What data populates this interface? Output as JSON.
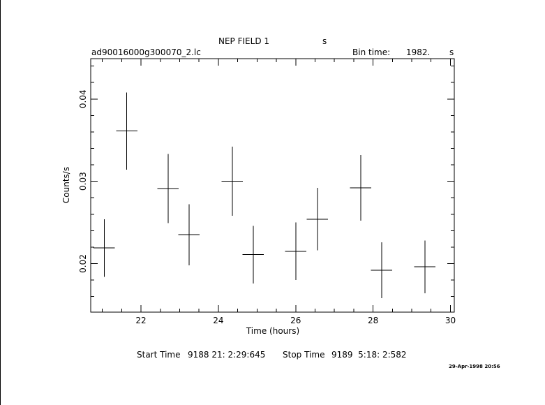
{
  "header": {
    "title": "NEP FIELD 1",
    "title_unit": "s",
    "filename": "ad90016000g300070_2.lc",
    "bin_time_label": "Bin time:",
    "bin_time_value": "1982.",
    "bin_time_unit": "s"
  },
  "footer": {
    "start_label": "Start Time",
    "start_value": "9188 21: 2:29:645",
    "stop_label": "Stop Time",
    "stop_value": "9189  5:18: 2:582",
    "date_stamp": "29-Apr-1998 20:56"
  },
  "chart_data": {
    "type": "scatter",
    "title": "NEP FIELD 1",
    "xlabel": "Time (hours)",
    "ylabel": "Counts/s",
    "xlim": [
      20.7,
      30.1
    ],
    "ylim": [
      0.0141,
      0.0449
    ],
    "x_ticks": [
      22,
      24,
      26,
      28,
      30
    ],
    "x_tick_labels": [
      "22",
      "24",
      "26",
      "28",
      "30"
    ],
    "y_ticks": [
      0.02,
      0.03,
      0.04
    ],
    "y_tick_labels": [
      "0.02",
      "0.03",
      "0.04"
    ],
    "grid": false,
    "series": [
      {
        "points": [
          {
            "x": 21.05,
            "xerr": 0.275,
            "y": 0.0219,
            "yerr": 0.0035
          },
          {
            "x": 21.63,
            "xerr": 0.275,
            "y": 0.0361,
            "yerr": 0.0047
          },
          {
            "x": 22.7,
            "xerr": 0.275,
            "y": 0.0291,
            "yerr": 0.0042
          },
          {
            "x": 23.24,
            "xerr": 0.275,
            "y": 0.0235,
            "yerr": 0.0037
          },
          {
            "x": 24.36,
            "xerr": 0.275,
            "y": 0.03,
            "yerr": 0.0042
          },
          {
            "x": 24.9,
            "xerr": 0.275,
            "y": 0.0211,
            "yerr": 0.0035
          },
          {
            "x": 26.0,
            "xerr": 0.275,
            "y": 0.0215,
            "yerr": 0.0035
          },
          {
            "x": 26.56,
            "xerr": 0.275,
            "y": 0.0254,
            "yerr": 0.0038
          },
          {
            "x": 27.68,
            "xerr": 0.275,
            "y": 0.0292,
            "yerr": 0.004
          },
          {
            "x": 28.22,
            "xerr": 0.275,
            "y": 0.0192,
            "yerr": 0.0034
          },
          {
            "x": 29.34,
            "xerr": 0.275,
            "y": 0.0196,
            "yerr": 0.0032
          }
        ]
      }
    ]
  }
}
